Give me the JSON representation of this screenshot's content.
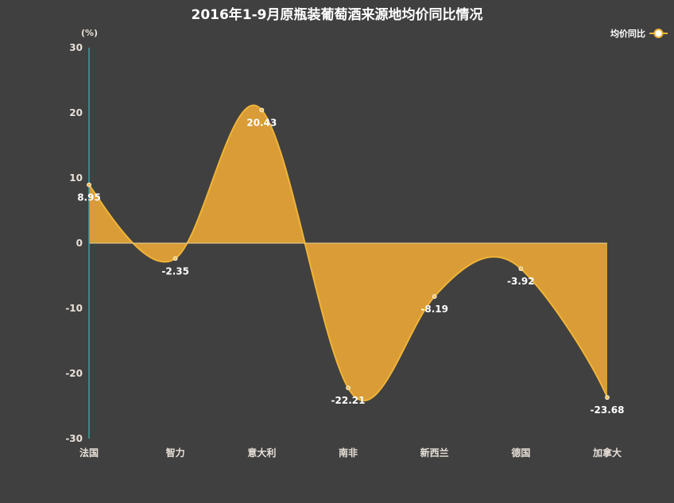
{
  "chart_data": {
    "type": "area",
    "title": "2016年1-9月原瓶装葡萄酒来源地均价同比情况",
    "ylabel": "(%)",
    "ylim": [
      -30,
      30
    ],
    "yticks": [
      -30,
      -20,
      -10,
      0,
      10,
      20,
      30
    ],
    "categories": [
      "法国",
      "智力",
      "意大利",
      "南非",
      "新西兰",
      "德国",
      "加拿大"
    ],
    "series": [
      {
        "name": "均价同比",
        "values": [
          8.95,
          -2.35,
          20.43,
          -22.21,
          -8.19,
          -3.92,
          -23.68
        ],
        "labels": [
          "8.95",
          "-2.35",
          "20.43",
          "-22.21",
          "-8.19",
          "-3.92",
          "-23.68"
        ]
      }
    ],
    "legend_position": "top-right",
    "grid": false,
    "colors": {
      "fill": "#d99c36",
      "line": "#f0b437",
      "axis": "#3aa0a0",
      "background": "#404040"
    }
  }
}
